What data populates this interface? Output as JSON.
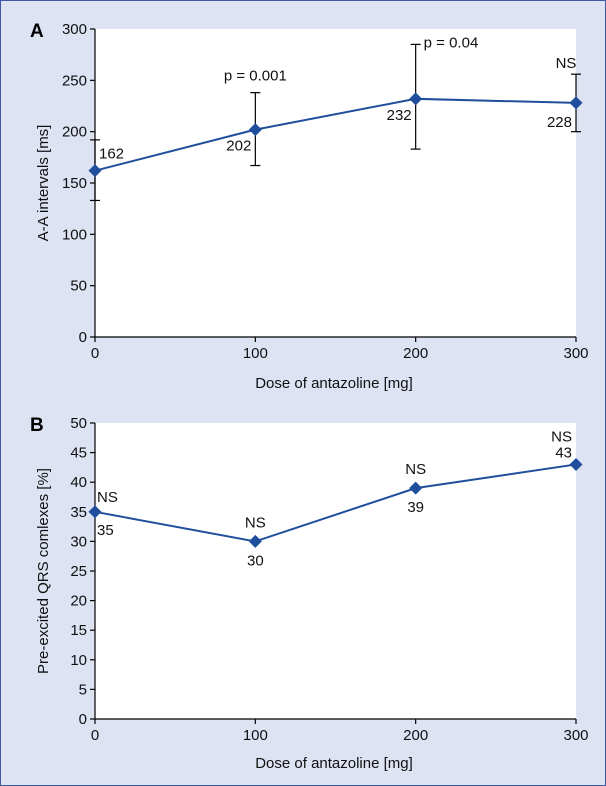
{
  "theme": {
    "background": "#dde3f3",
    "border": "#3b5aa3",
    "marker": "#1f4e9c",
    "line": "#1f4e9c"
  },
  "chart_data": [
    {
      "panel": "A",
      "type": "line",
      "xlabel": "Dose of antazoline [mg]",
      "ylabel": "A-A intervals [ms]",
      "x": [
        0,
        100,
        200,
        300
      ],
      "values": [
        162,
        202,
        232,
        228
      ],
      "error_bars": [
        {
          "low": 133,
          "high": 192
        },
        {
          "low": 167,
          "high": 238
        },
        {
          "low": 183,
          "high": 285
        },
        {
          "low": 200,
          "high": 256
        }
      ],
      "data_labels": [
        "162",
        "202",
        "232",
        "228"
      ],
      "annotations": [
        "",
        "p = 0.001",
        "p = 0.04",
        "NS"
      ],
      "xlim": [
        0,
        300
      ],
      "ylim": [
        0,
        300
      ],
      "xticks": [
        0,
        100,
        200,
        300
      ],
      "yticks": [
        0,
        50,
        100,
        150,
        200,
        250,
        300
      ],
      "grid": false
    },
    {
      "panel": "B",
      "type": "line",
      "xlabel": "Dose of antazoline [mg]",
      "ylabel": "Pre-excited QRS comlexes [%]",
      "x": [
        0,
        100,
        200,
        300
      ],
      "values": [
        35,
        30,
        39,
        43
      ],
      "data_labels": [
        "35",
        "30",
        "39",
        "43"
      ],
      "annotations": [
        "NS",
        "NS",
        "NS",
        "NS"
      ],
      "xlim": [
        0,
        300
      ],
      "ylim": [
        0,
        50
      ],
      "xticks": [
        0,
        100,
        200,
        300
      ],
      "yticks": [
        0,
        5,
        10,
        15,
        20,
        25,
        30,
        35,
        40,
        45,
        50
      ],
      "grid": false
    }
  ]
}
